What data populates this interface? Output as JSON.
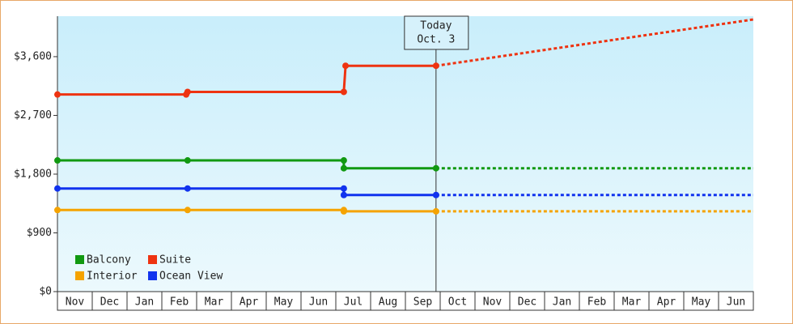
{
  "chart_data": {
    "type": "line",
    "categories": [
      "Nov",
      "Dec",
      "Jan",
      "Feb",
      "Mar",
      "Apr",
      "May",
      "Jun",
      "Jul",
      "Aug",
      "Sep",
      "Oct",
      "Nov",
      "Dec",
      "Jan",
      "Feb",
      "Mar",
      "Apr",
      "May",
      "Jun"
    ],
    "xlim": [
      0,
      20
    ],
    "ylim": [
      0,
      4220
    ],
    "yticks": [
      {
        "value": 0,
        "label": "$0"
      },
      {
        "value": 900,
        "label": "$900"
      },
      {
        "value": 1800,
        "label": "$1,800"
      },
      {
        "value": 2700,
        "label": "$2,700"
      },
      {
        "value": 3600,
        "label": "$3,600"
      }
    ],
    "series": [
      {
        "name": "Balcony",
        "color": "#119911",
        "x": [
          0,
          3.74,
          8.23,
          8.23,
          10.88
        ],
        "values": [
          2010,
          2010,
          2010,
          1890,
          1890
        ],
        "forecast": {
          "x": [
            10.88,
            20
          ],
          "values": [
            1890,
            1890
          ]
        }
      },
      {
        "name": "Suite",
        "color": "#ee3311",
        "x": [
          0,
          3.7,
          3.74,
          8.23,
          8.28,
          10.88
        ],
        "values": [
          3020,
          3020,
          3060,
          3060,
          3460,
          3460
        ],
        "forecast": {
          "x": [
            10.88,
            20
          ],
          "values": [
            3460,
            4170
          ]
        }
      },
      {
        "name": "Interior",
        "color": "#f5a300",
        "x": [
          0,
          3.74,
          8.23,
          8.23,
          10.88
        ],
        "values": [
          1250,
          1250,
          1250,
          1230,
          1230
        ],
        "forecast": {
          "x": [
            10.88,
            20
          ],
          "values": [
            1230,
            1230
          ]
        }
      },
      {
        "name": "Ocean View",
        "color": "#1133ee",
        "x": [
          0,
          3.74,
          8.23,
          8.23,
          10.88
        ],
        "values": [
          1580,
          1580,
          1580,
          1480,
          1480
        ],
        "forecast": {
          "x": [
            10.88,
            20
          ],
          "values": [
            1480,
            1480
          ]
        }
      }
    ],
    "annotation": {
      "x": 10.88,
      "label": [
        "Today",
        "Oct. 3"
      ]
    },
    "legend": "lower left"
  }
}
